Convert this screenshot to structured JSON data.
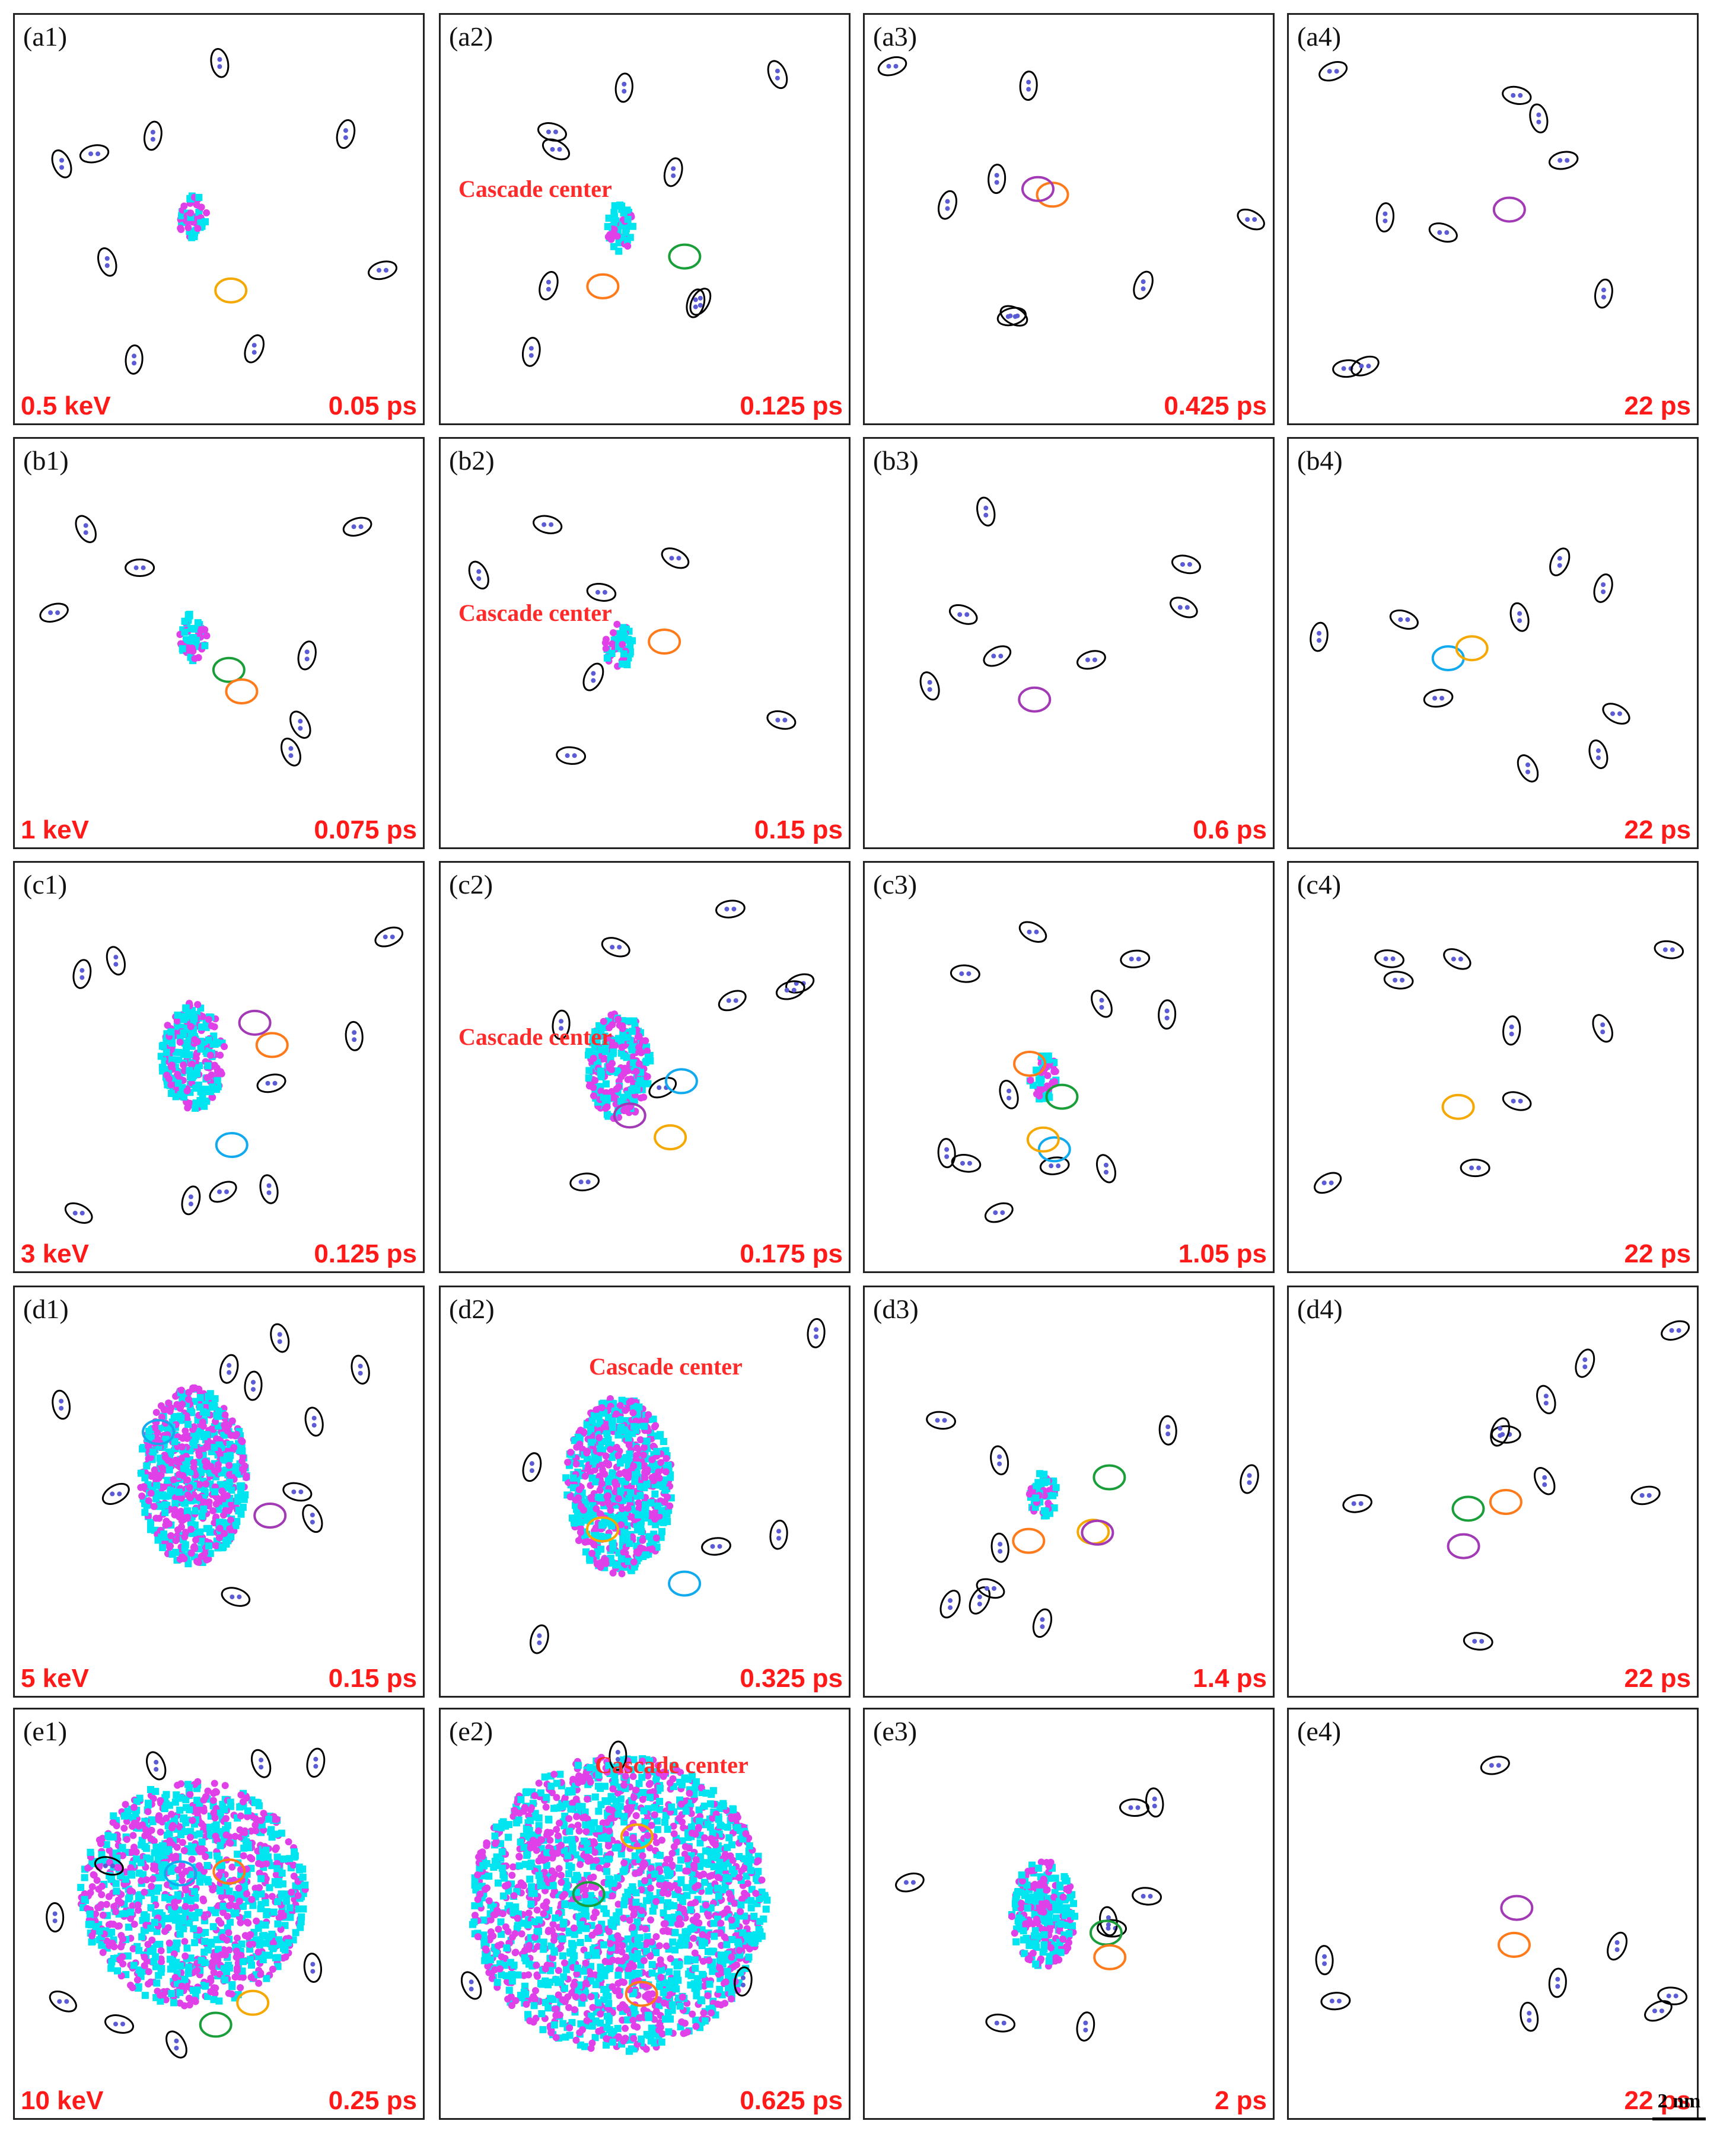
{
  "colors": {
    "vacancy": "#00e5ef",
    "interstitial": "#e040e8",
    "dumbbell": "#5b5bd6",
    "time_label": "#ff1a1a",
    "ellipse_black": "#000000",
    "ellipse_yellow": "#f5a800",
    "ellipse_green": "#1a9e3a",
    "ellipse_orange": "#ff7a1a",
    "ellipse_purple": "#a23ab6",
    "ellipse_cyan": "#11aaee",
    "ellipse_blue": "#1a60c8"
  },
  "cascade_center_label": "Cascade center",
  "scale_bar": "2 nm",
  "rows": [
    {
      "energy": "0.5 keV",
      "panels": [
        {
          "label": "(a1)",
          "time": "0.05 ps",
          "size": 1
        },
        {
          "label": "(a2)",
          "time": "0.125 ps",
          "size": 1,
          "cc": true
        },
        {
          "label": "(a3)",
          "time": "0.425 ps",
          "size": 0
        },
        {
          "label": "(a4)",
          "time": "22 ps",
          "size": 0
        }
      ]
    },
    {
      "energy": "1 keV",
      "panels": [
        {
          "label": "(b1)",
          "time": "0.075 ps",
          "size": 1
        },
        {
          "label": "(b2)",
          "time": "0.15 ps",
          "size": 1,
          "cc": true
        },
        {
          "label": "(b3)",
          "time": "0.6 ps",
          "size": 0
        },
        {
          "label": "(b4)",
          "time": "22 ps",
          "size": 0
        }
      ]
    },
    {
      "energy": "3 keV",
      "panels": [
        {
          "label": "(c1)",
          "time": "0.125 ps",
          "size": 2
        },
        {
          "label": "(c2)",
          "time": "0.175 ps",
          "size": 2,
          "cc": true
        },
        {
          "label": "(c3)",
          "time": "1.05 ps",
          "size": 1
        },
        {
          "label": "(c4)",
          "time": "22 ps",
          "size": 0
        }
      ]
    },
    {
      "energy": "5 keV",
      "panels": [
        {
          "label": "(d1)",
          "time": "0.15 ps",
          "size": 3
        },
        {
          "label": "(d2)",
          "time": "0.325 ps",
          "size": 3,
          "cc": true
        },
        {
          "label": "(d3)",
          "time": "1.4 ps",
          "size": 1
        },
        {
          "label": "(d4)",
          "time": "22 ps",
          "size": 0
        }
      ]
    },
    {
      "energy": "10 keV",
      "panels": [
        {
          "label": "(e1)",
          "time": "0.25 ps",
          "size": 4
        },
        {
          "label": "(e2)",
          "time": "0.625 ps",
          "size": 5,
          "cc": true
        },
        {
          "label": "(e3)",
          "time": "2 ps",
          "size": 2
        },
        {
          "label": "(e4)",
          "time": "22 ps",
          "size": 0
        }
      ]
    }
  ]
}
